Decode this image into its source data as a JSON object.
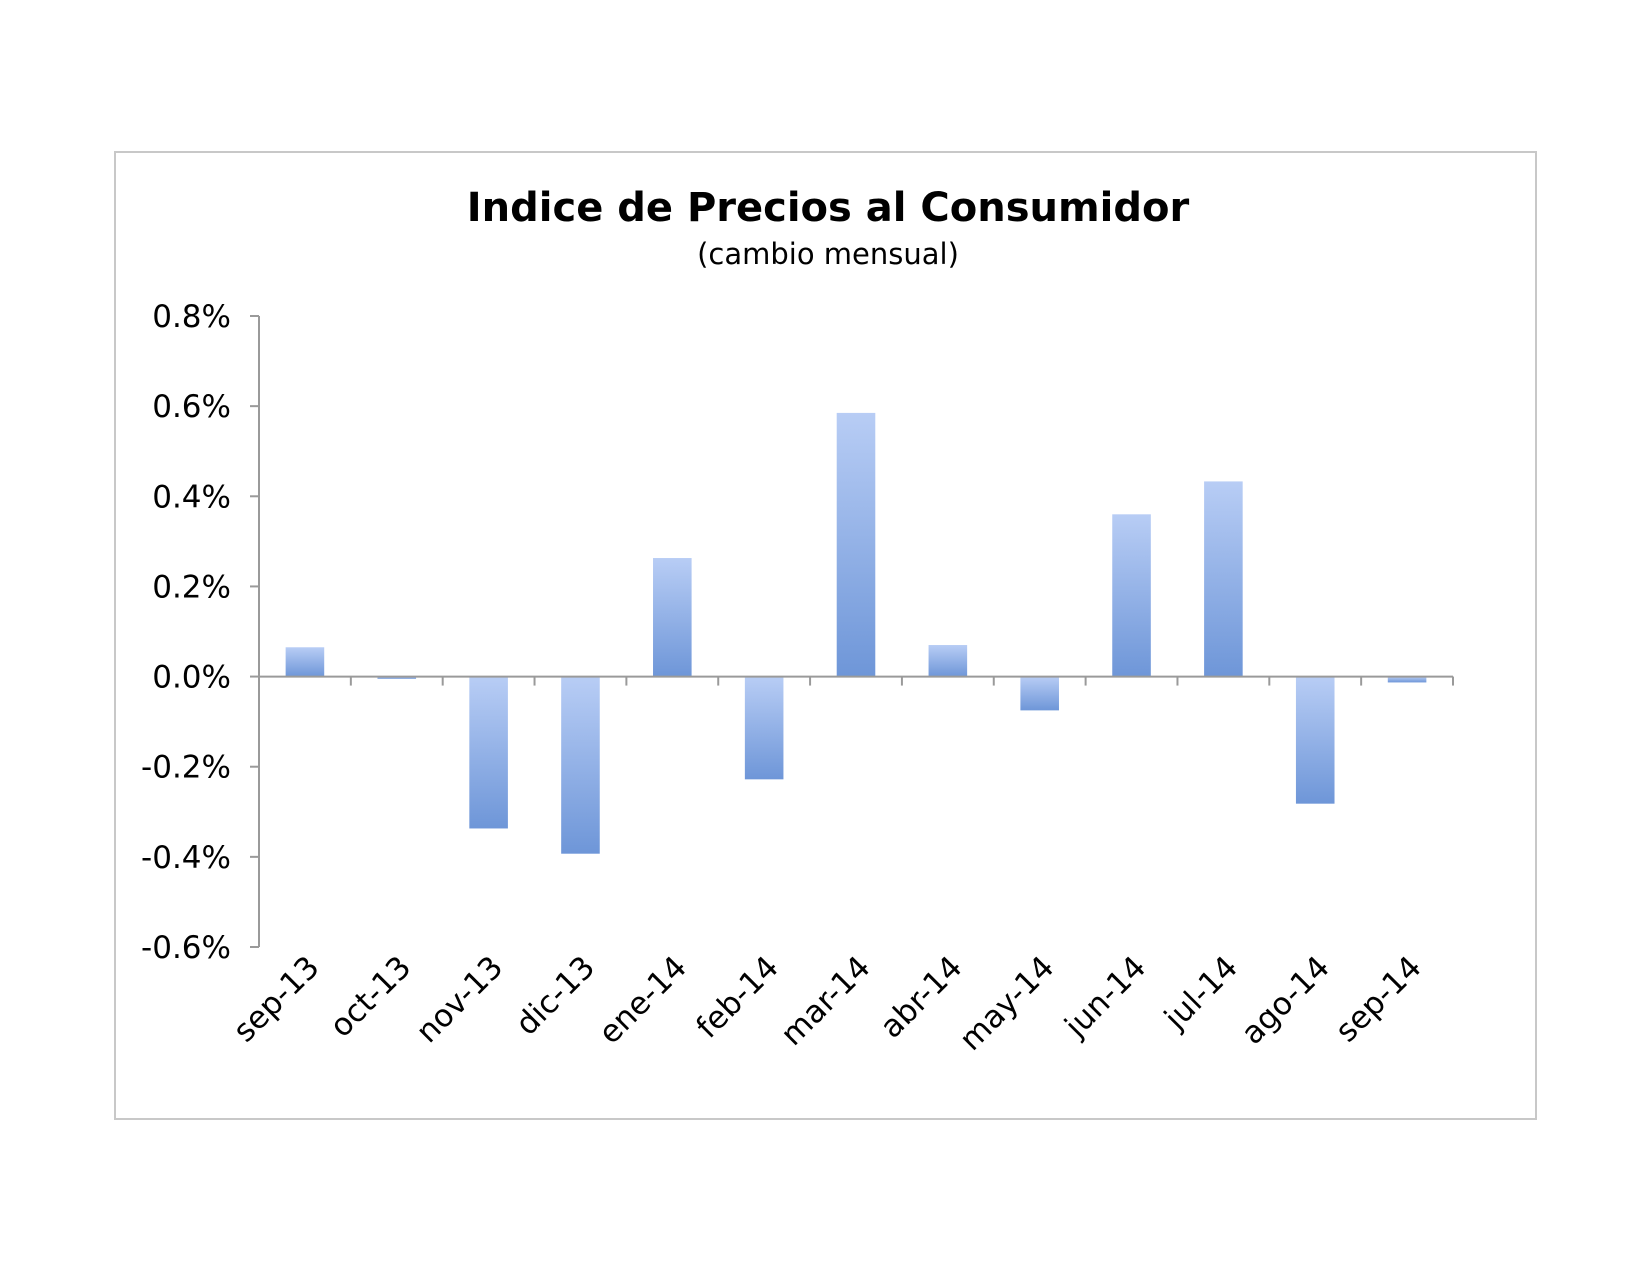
{
  "chart_data": {
    "type": "bar",
    "title": "Indice de Precios al Consumidor",
    "subtitle": "(cambio mensual)",
    "xlabel": "",
    "ylabel": "",
    "categories": [
      "sep-13",
      "oct-13",
      "nov-13",
      "dic-13",
      "ene-14",
      "feb-14",
      "mar-14",
      "abr-14",
      "may-14",
      "jun-14",
      "jul-14",
      "ago-14",
      "sep-14"
    ],
    "values": [
      0.065,
      -0.005,
      -0.337,
      -0.393,
      0.263,
      -0.228,
      0.585,
      0.07,
      -0.075,
      0.36,
      0.433,
      -0.282,
      -0.013
    ],
    "unit": "%",
    "ylim": [
      -0.6,
      0.8
    ],
    "yticks": [
      0.8,
      0.6,
      0.4,
      0.2,
      0.0,
      -0.2,
      -0.4,
      -0.6
    ],
    "ytick_labels": [
      "0.8%",
      "0.6%",
      "0.4%",
      "0.2%",
      "0.0%",
      "-0.2%",
      "-0.4%",
      "-0.6%"
    ],
    "grid": false,
    "legend": "none",
    "bar_color_top": "#b8cdf5",
    "bar_color_bottom": "#6e96d8",
    "axis_color": "#9a9a9a"
  }
}
